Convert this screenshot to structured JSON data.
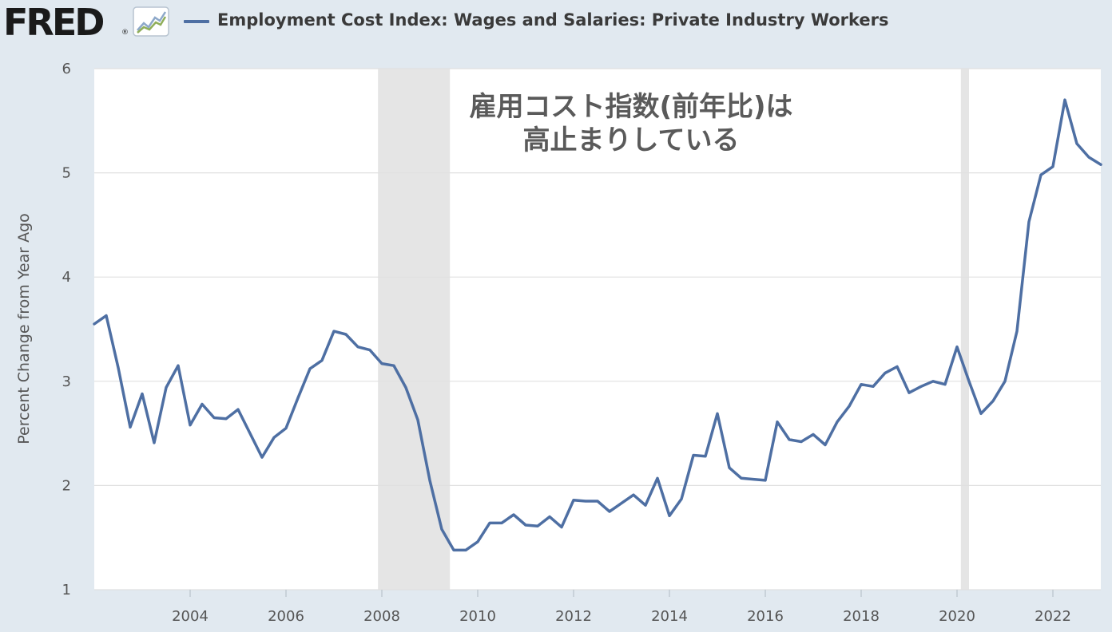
{
  "header": {
    "logo_text": "FRED",
    "logo_mark": "®",
    "logo_icon": "trend-graph-icon",
    "legend_label": "Employment Cost Index: Wages and Salaries: Private Industry Workers"
  },
  "colors": {
    "page_background": "#e1e9f0",
    "plot_background": "#ffffff",
    "series_line": "#4e6fa3",
    "recession_shade": "#e5e5e5"
  },
  "annotation": {
    "line1": "雇用コスト指数(前年比)は",
    "line2": "高止まりしている"
  },
  "chart_data": {
    "type": "line",
    "title": "",
    "xlabel": "",
    "ylabel": "Percent Change from Year Ago",
    "ylim": [
      1,
      6
    ],
    "xlim": [
      2002.0,
      2023.0
    ],
    "y_ticks": [
      1,
      2,
      3,
      4,
      5,
      6
    ],
    "x_ticks": [
      2004,
      2006,
      2008,
      2010,
      2012,
      2014,
      2016,
      2018,
      2020,
      2022
    ],
    "grid": "horizontal",
    "recessions": [
      [
        2007.92,
        2009.42
      ],
      [
        2020.08,
        2020.25
      ]
    ],
    "series": [
      {
        "name": "Employment Cost Index: Wages and Salaries: Private Industry Workers",
        "x": [
          2002.0,
          2002.25,
          2002.5,
          2002.75,
          2003.0,
          2003.25,
          2003.5,
          2003.75,
          2004.0,
          2004.25,
          2004.5,
          2004.75,
          2005.0,
          2005.25,
          2005.5,
          2005.75,
          2006.0,
          2006.25,
          2006.5,
          2006.75,
          2007.0,
          2007.25,
          2007.5,
          2007.75,
          2008.0,
          2008.25,
          2008.5,
          2008.75,
          2009.0,
          2009.25,
          2009.5,
          2009.75,
          2010.0,
          2010.25,
          2010.5,
          2010.75,
          2011.0,
          2011.25,
          2011.5,
          2011.75,
          2012.0,
          2012.25,
          2012.5,
          2012.75,
          2013.0,
          2013.25,
          2013.5,
          2013.75,
          2014.0,
          2014.25,
          2014.5,
          2014.75,
          2015.0,
          2015.25,
          2015.5,
          2015.75,
          2016.0,
          2016.25,
          2016.5,
          2016.75,
          2017.0,
          2017.25,
          2017.5,
          2017.75,
          2018.0,
          2018.25,
          2018.5,
          2018.75,
          2019.0,
          2019.25,
          2019.5,
          2019.75,
          2020.0,
          2020.25,
          2020.5,
          2020.75,
          2021.0,
          2021.25,
          2021.5,
          2021.75,
          2022.0,
          2022.25,
          2022.5,
          2022.75,
          2023.0
        ],
        "values": [
          3.55,
          3.63,
          3.13,
          2.56,
          2.88,
          2.41,
          2.94,
          3.15,
          2.58,
          2.78,
          2.65,
          2.64,
          2.73,
          2.5,
          2.27,
          2.46,
          2.55,
          2.84,
          3.12,
          3.2,
          3.48,
          3.45,
          3.33,
          3.3,
          3.17,
          3.15,
          2.94,
          2.63,
          2.05,
          1.58,
          1.38,
          1.38,
          1.46,
          1.64,
          1.64,
          1.72,
          1.62,
          1.61,
          1.7,
          1.6,
          1.86,
          1.85,
          1.85,
          1.75,
          1.83,
          1.91,
          1.81,
          2.07,
          1.71,
          1.87,
          2.29,
          2.28,
          2.69,
          2.17,
          2.07,
          2.06,
          2.05,
          2.61,
          2.44,
          2.42,
          2.49,
          2.39,
          2.61,
          2.76,
          2.97,
          2.95,
          3.08,
          3.14,
          2.89,
          2.95,
          3.0,
          2.97,
          3.33,
          3.0,
          2.69,
          2.81,
          3.0,
          3.48,
          4.53,
          4.98,
          5.06,
          5.7,
          5.28,
          5.15,
          5.08
        ]
      }
    ]
  }
}
